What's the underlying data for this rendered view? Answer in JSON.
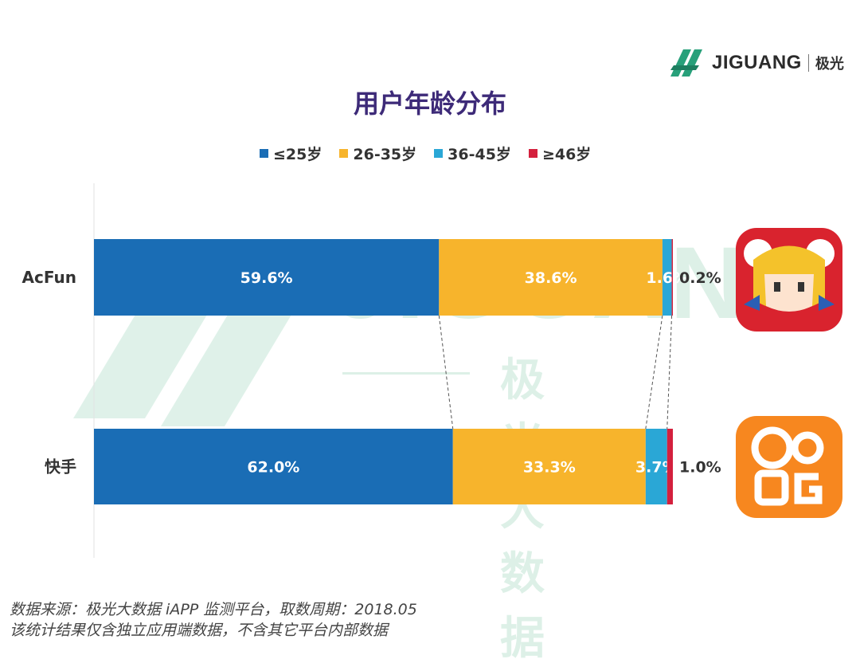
{
  "brand": {
    "name": "JIGUANG",
    "name_cn": "极光"
  },
  "watermark": {
    "text": "JIGUANG",
    "text_cn": "极光大数据"
  },
  "chart_data": {
    "type": "bar",
    "stacked": true,
    "orientation": "horizontal",
    "title": "用户年龄分布",
    "categories": [
      "AcFun",
      "快手"
    ],
    "series": [
      {
        "name": "≤25岁",
        "values": [
          59.6,
          62.0
        ],
        "labels": [
          "59.6%",
          "62.0%"
        ],
        "color": "#1a6db5"
      },
      {
        "name": "26-35岁",
        "values": [
          38.6,
          33.3
        ],
        "labels": [
          "38.6%",
          "33.3%"
        ],
        "color": "#f7b42c"
      },
      {
        "name": "36-45岁",
        "values": [
          1.6,
          3.7
        ],
        "labels": [
          "1.6%",
          "3.7%"
        ],
        "color": "#2aa7d6"
      },
      {
        "name": "≥46岁",
        "values": [
          0.2,
          1.0
        ],
        "labels": [
          "0.2%",
          "1.0%"
        ],
        "color": "#d4203d"
      }
    ],
    "xlim": [
      0,
      100
    ],
    "legend_position": "top",
    "grid": false
  },
  "footer": {
    "line1": "数据来源：极光大数据 iAPP 监测平台，取数周期：2018.05",
    "line2": "该统计结果仅含独立应用端数据，不含其它平台内部数据"
  },
  "icons": [
    "acfun-app-icon",
    "kuaishou-app-icon",
    "jiguang-logo-icon"
  ]
}
